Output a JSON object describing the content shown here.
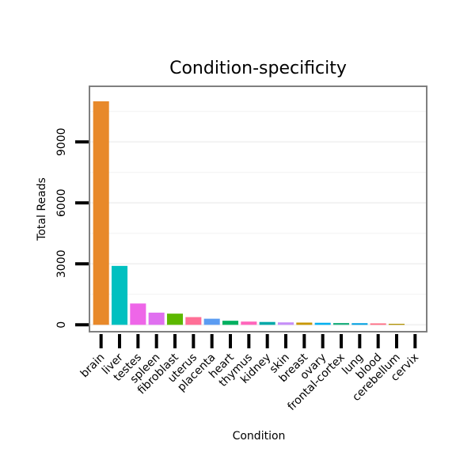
{
  "chart_data": {
    "type": "bar",
    "title": "Condition-specificity",
    "xlabel": "Condition",
    "ylabel": "Total Reads",
    "ylim": [
      -300,
      11700
    ],
    "yticks": [
      0,
      3000,
      6000,
      9000
    ],
    "grid": true,
    "categories": [
      "brain",
      "liver",
      "testes",
      "spleen",
      "fibroblast",
      "uterus",
      "placenta",
      "heart",
      "thymus",
      "kidney",
      "skin",
      "breast",
      "ovary",
      "frontal-cortex",
      "lung",
      "blood",
      "cerebellum",
      "cervix"
    ],
    "values": [
      11000,
      2900,
      1050,
      600,
      550,
      380,
      300,
      200,
      160,
      140,
      120,
      110,
      100,
      90,
      80,
      70,
      50,
      0
    ],
    "colors": [
      "#e8892a",
      "#00c0c0",
      "#ee66e8",
      "#e070f0",
      "#5cb800",
      "#ff6f96",
      "#5b9cf2",
      "#00b060",
      "#ff66bb",
      "#00a8a8",
      "#c58ef8",
      "#c89600",
      "#00b0f0",
      "#20b080",
      "#00a0e0",
      "#ff6a80",
      "#b09000",
      "#d7b000"
    ]
  }
}
